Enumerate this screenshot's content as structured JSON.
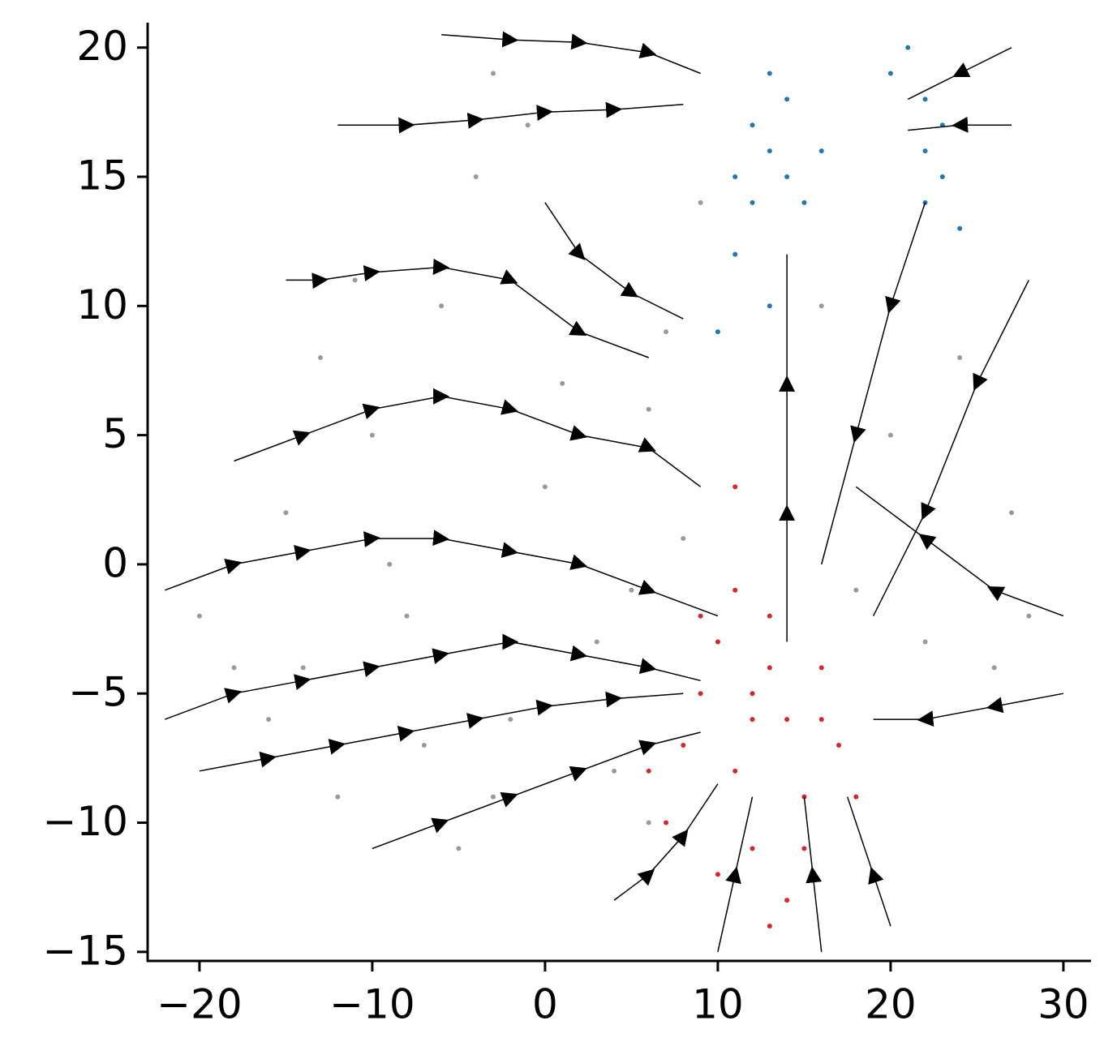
{
  "chart_data": {
    "type": "streamplot",
    "xlim": [
      -23,
      31.6
    ],
    "ylim": [
      -15.35,
      20.9
    ],
    "xticks": [
      {
        "value": -20,
        "label": "−20"
      },
      {
        "value": -10,
        "label": "−10"
      },
      0,
      10,
      20,
      30
    ],
    "yticks": [
      {
        "value": -15,
        "label": "−15"
      },
      {
        "value": -10,
        "label": "−10"
      },
      {
        "value": -5,
        "label": "−5"
      },
      0,
      5,
      10,
      15,
      20
    ],
    "series": [
      {
        "color": "#9a9a9a",
        "x": [
          -18,
          -15,
          -12,
          -10,
          -8,
          -6,
          -4,
          -2,
          0,
          2,
          4,
          6,
          8,
          -16,
          -13,
          -9,
          -5,
          -1,
          3,
          7,
          -7,
          -3,
          1,
          5,
          9,
          20,
          24,
          27,
          18,
          22,
          26,
          -20,
          -14,
          -11,
          -3,
          6,
          16,
          28
        ],
        "y": [
          -4,
          2,
          -9,
          5,
          -2,
          10,
          15,
          -6,
          3,
          12,
          -8,
          6,
          1,
          -6,
          8,
          0,
          -11,
          17,
          -3,
          9,
          -7,
          19,
          7,
          -1,
          14,
          5,
          8,
          2,
          -1,
          -3,
          -4,
          -2,
          -4,
          11,
          -9,
          -10,
          10,
          -2
        ]
      },
      {
        "color": "#d62728",
        "x": [
          12,
          10,
          14,
          8,
          16,
          11,
          13,
          9,
          15,
          12,
          7,
          17,
          10,
          14,
          11,
          13,
          18,
          6,
          12,
          15,
          9,
          16,
          13,
          11
        ],
        "y": [
          -5,
          -3,
          -6,
          -7,
          -4,
          -8,
          -2,
          -5,
          -9,
          -11,
          -10,
          -7,
          -12,
          -13,
          -1,
          -4,
          -9,
          -8,
          -6,
          -11,
          -2,
          -6,
          -14,
          3
        ]
      },
      {
        "color": "#1f77b4",
        "x": [
          12,
          13,
          14,
          11,
          15,
          13,
          12,
          14,
          16,
          10,
          21,
          22,
          23,
          20,
          22,
          23,
          11,
          13,
          22,
          24
        ],
        "y": [
          17,
          16,
          18,
          15,
          14,
          19,
          14,
          15,
          16,
          9,
          20,
          18,
          17,
          19,
          16,
          15,
          12,
          10,
          14,
          13
        ]
      }
    ],
    "streamlines": [
      {
        "x": [
          -15,
          -13,
          -10,
          -6,
          -2,
          2,
          6
        ],
        "y": [
          11,
          11,
          11.3,
          11.5,
          11,
          9,
          8
        ]
      },
      {
        "x": [
          -12,
          -8,
          -4,
          0,
          4,
          8
        ],
        "y": [
          17,
          17,
          17.2,
          17.5,
          17.6,
          17.8
        ]
      },
      {
        "x": [
          -6,
          -2,
          2,
          6,
          9
        ],
        "y": [
          20.5,
          20.3,
          20.2,
          19.8,
          19
        ]
      },
      {
        "x": [
          -18,
          -14,
          -10,
          -6,
          -2,
          2,
          6,
          9
        ],
        "y": [
          4,
          5,
          6,
          6.5,
          6,
          5,
          4.5,
          3
        ]
      },
      {
        "x": [
          -22,
          -18,
          -14,
          -10,
          -6,
          -2,
          2,
          6,
          10
        ],
        "y": [
          -1,
          0,
          0.5,
          1,
          1,
          0.5,
          0,
          -1,
          -2
        ]
      },
      {
        "x": [
          -22,
          -18,
          -14,
          -10,
          -6,
          -2,
          2,
          6,
          9
        ],
        "y": [
          -6,
          -5,
          -4.5,
          -4,
          -3.5,
          -3,
          -3.5,
          -4,
          -4.5
        ]
      },
      {
        "x": [
          -20,
          -16,
          -12,
          -8,
          -4,
          0,
          4,
          8
        ],
        "y": [
          -8,
          -7.5,
          -7,
          -6.5,
          -6,
          -5.5,
          -5.2,
          -5
        ]
      },
      {
        "x": [
          -10,
          -6,
          -2,
          2,
          6,
          9
        ],
        "y": [
          -11,
          -10,
          -9,
          -8,
          -7,
          -6.5
        ]
      },
      {
        "x": [
          4,
          6,
          8,
          10
        ],
        "y": [
          -13,
          -12,
          -10.5,
          -8.5
        ]
      },
      {
        "x": [
          10,
          11,
          12
        ],
        "y": [
          -15,
          -12,
          -9
        ]
      },
      {
        "x": [
          16,
          15.5,
          15
        ],
        "y": [
          -15,
          -12,
          -9
        ]
      },
      {
        "x": [
          20,
          19,
          17.5
        ],
        "y": [
          -14,
          -12,
          -9
        ]
      },
      {
        "x": [
          30,
          26,
          22,
          19
        ],
        "y": [
          -5,
          -5.5,
          -6,
          -6
        ]
      },
      {
        "x": [
          30,
          26,
          22,
          18
        ],
        "y": [
          -2,
          -1,
          1,
          3
        ]
      },
      {
        "x": [
          22,
          20,
          18,
          16
        ],
        "y": [
          14,
          10,
          5,
          0
        ]
      },
      {
        "x": [
          28,
          25,
          22,
          19
        ],
        "y": [
          11,
          7,
          2,
          -2
        ]
      },
      {
        "x": [
          14,
          14,
          14,
          14
        ],
        "y": [
          -3,
          2,
          7,
          12
        ]
      },
      {
        "x": [
          27,
          24,
          21
        ],
        "y": [
          20,
          19,
          18
        ]
      },
      {
        "x": [
          27,
          24,
          21
        ],
        "y": [
          17,
          17,
          16.8
        ]
      },
      {
        "x": [
          0,
          2,
          5,
          8
        ],
        "y": [
          14,
          12,
          10.5,
          9.5
        ]
      }
    ]
  }
}
